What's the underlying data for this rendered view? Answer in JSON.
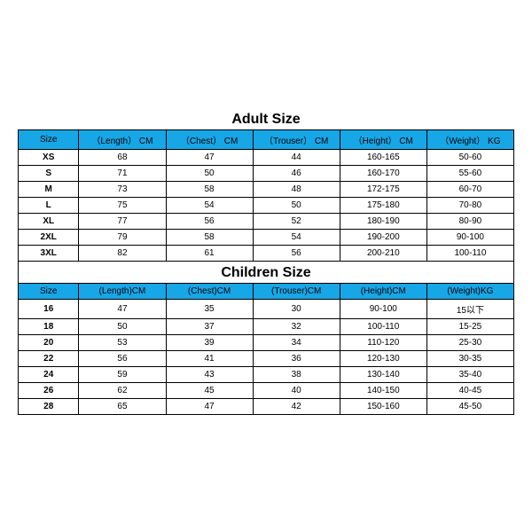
{
  "adult": {
    "title": "Adult Size",
    "headers": [
      "Size",
      "（Length） CM",
      "（Chest） CM",
      "（Trouser） CM",
      "（Height） CM",
      "（Weight） KG"
    ],
    "rows": [
      [
        "XS",
        "68",
        "47",
        "44",
        "160-165",
        "50-60"
      ],
      [
        "S",
        "71",
        "50",
        "46",
        "160-170",
        "55-60"
      ],
      [
        "M",
        "73",
        "58",
        "48",
        "172-175",
        "60-70"
      ],
      [
        "L",
        "75",
        "54",
        "50",
        "175-180",
        "70-80"
      ],
      [
        "XL",
        "77",
        "56",
        "52",
        "180-190",
        "80-90"
      ],
      [
        "2XL",
        "79",
        "58",
        "54",
        "190-200",
        "90-100"
      ],
      [
        "3XL",
        "82",
        "61",
        "56",
        "200-210",
        "100-110"
      ]
    ],
    "header_bg": "#17a6e6",
    "border_color": "#000000",
    "title_fontsize": 16,
    "cell_fontsize": 10
  },
  "children": {
    "title": "Children Size",
    "headers": [
      "Size",
      "(Length)CM",
      "(Chest)CM",
      "(Trouser)CM",
      "(Height)CM",
      "(Weight)KG"
    ],
    "rows": [
      [
        "16",
        "47",
        "35",
        "30",
        "90-100",
        "15以下"
      ],
      [
        "18",
        "50",
        "37",
        "32",
        "100-110",
        "15-25"
      ],
      [
        "20",
        "53",
        "39",
        "34",
        "110-120",
        "25-30"
      ],
      [
        "22",
        "56",
        "41",
        "36",
        "120-130",
        "30-35"
      ],
      [
        "24",
        "59",
        "43",
        "38",
        "130-140",
        "35-40"
      ],
      [
        "26",
        "62",
        "45",
        "40",
        "140-150",
        "40-45"
      ],
      [
        "28",
        "65",
        "47",
        "42",
        "150-160",
        "45-50"
      ]
    ],
    "header_bg": "#17a6e6",
    "border_color": "#000000",
    "title_fontsize": 16,
    "cell_fontsize": 10
  }
}
